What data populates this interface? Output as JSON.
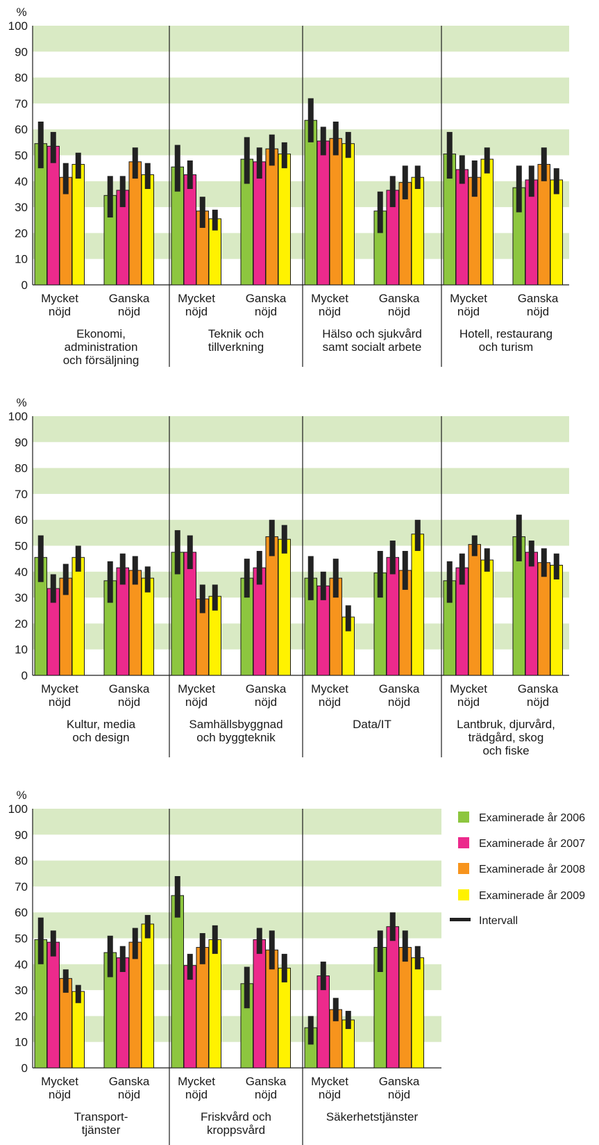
{
  "chart_data": {
    "type": "bar",
    "unit": "%",
    "ylim": [
      0,
      100
    ],
    "yticks": [
      0,
      10,
      20,
      30,
      40,
      50,
      60,
      70,
      80,
      90,
      100
    ],
    "grid": "alternating horizontal bands",
    "legend_placement": "right of bottom panel",
    "categories": [
      [
        "Mycket",
        "nöjd"
      ],
      [
        "Ganska",
        "nöjd"
      ]
    ],
    "series": [
      {
        "name": "Examinerade år 2006",
        "color": "#8dc63f"
      },
      {
        "name": "Examinerade år 2007",
        "color": "#ec2a8c"
      },
      {
        "name": "Examinerade år 2008",
        "color": "#f7941d"
      },
      {
        "name": "Examinerade år 2009",
        "color": "#fff200"
      }
    ],
    "interval_label": "Intervall",
    "band_color": "#d9eac4",
    "panels": [
      {
        "groups": [
          {
            "label": [
              "Ekonomi,",
              "administration",
              "och försäljning"
            ],
            "values": [
              [
                54.5,
                53.5,
                41.5,
                46.5
              ],
              [
                34.5,
                36.5,
                47.5,
                42.5
              ]
            ],
            "intervals": [
              [
                [
                  45,
                  63
                ],
                [
                  47,
                  59
                ],
                [
                  35,
                  47
                ],
                [
                  41,
                  51
                ]
              ],
              [
                [
                  26,
                  42
                ],
                [
                  30,
                  42
                ],
                [
                  41,
                  53
                ],
                [
                  37,
                  47
                ]
              ]
            ]
          },
          {
            "label": [
              "Teknik och",
              "tillverkning"
            ],
            "values": [
              [
                45.5,
                42.5,
                28.5,
                25.5
              ],
              [
                48.5,
                47.5,
                52.5,
                50.5
              ]
            ],
            "intervals": [
              [
                [
                  36,
                  54
                ],
                [
                  37,
                  48
                ],
                [
                  22,
                  34
                ],
                [
                  21,
                  29
                ]
              ],
              [
                [
                  39,
                  57
                ],
                [
                  41,
                  53
                ],
                [
                  46,
                  58
                ],
                [
                  45,
                  55
                ]
              ]
            ]
          },
          {
            "label": [
              "Hälso och sjukvård",
              "samt socialt arbete"
            ],
            "values": [
              [
                63.5,
                55.5,
                56.5,
                54.5
              ],
              [
                28.5,
                36.5,
                39.5,
                41.5
              ]
            ],
            "intervals": [
              [
                [
                  55,
                  72
                ],
                [
                  50,
                  61
                ],
                [
                  50,
                  63
                ],
                [
                  49,
                  59
                ]
              ],
              [
                [
                  20,
                  36
                ],
                [
                  30,
                  42
                ],
                [
                  33,
                  46
                ],
                [
                  37,
                  46
                ]
              ]
            ]
          },
          {
            "label": [
              "Hotell, restaurang",
              "och turism"
            ],
            "values": [
              [
                50.5,
                44.5,
                41.5,
                48.5
              ],
              [
                37.5,
                40.5,
                46.5,
                40.5
              ]
            ],
            "intervals": [
              [
                [
                  41,
                  59
                ],
                [
                  39,
                  50
                ],
                [
                  34,
                  48
                ],
                [
                  43,
                  53
                ]
              ],
              [
                [
                  28,
                  46
                ],
                [
                  34,
                  46
                ],
                [
                  40,
                  53
                ],
                [
                  35,
                  45
                ]
              ]
            ]
          }
        ]
      },
      {
        "groups": [
          {
            "label": [
              "Kultur, media",
              "och design"
            ],
            "values": [
              [
                45.5,
                33.5,
                37.5,
                45.5
              ],
              [
                36.5,
                41.5,
                40.5,
                37.5
              ]
            ],
            "intervals": [
              [
                [
                  36,
                  54
                ],
                [
                  28,
                  39
                ],
                [
                  31,
                  43
                ],
                [
                  40,
                  50
                ]
              ],
              [
                [
                  28,
                  44
                ],
                [
                  35,
                  47
                ],
                [
                  35,
                  46
                ],
                [
                  32,
                  42
                ]
              ]
            ]
          },
          {
            "label": [
              "Samhällsbyggnad",
              "och byggteknik"
            ],
            "values": [
              [
                47.5,
                47.5,
                29.5,
                30.5
              ],
              [
                37.5,
                41.5,
                53.5,
                52.5
              ]
            ],
            "intervals": [
              [
                [
                  39,
                  56
                ],
                [
                  41,
                  54
                ],
                [
                  24,
                  35
                ],
                [
                  25,
                  35
                ]
              ],
              [
                [
                  30,
                  45
                ],
                [
                  35,
                  48
                ],
                [
                  46,
                  60
                ],
                [
                  47,
                  58
                ]
              ]
            ]
          },
          {
            "label": [
              "Data/IT"
            ],
            "values": [
              [
                37.5,
                34.5,
                37.5,
                22.5
              ],
              [
                39.5,
                45.5,
                40.5,
                54.5
              ]
            ],
            "intervals": [
              [
                [
                  29,
                  46
                ],
                [
                  29,
                  40
                ],
                [
                  30,
                  45
                ],
                [
                  17,
                  27
                ]
              ],
              [
                [
                  30,
                  48
                ],
                [
                  39,
                  52
                ],
                [
                  33,
                  48
                ],
                [
                  48,
                  60
                ]
              ]
            ]
          },
          {
            "label": [
              "Lantbruk, djurvård,",
              "trädgård, skog",
              "och fiske"
            ],
            "values": [
              [
                36.5,
                41.5,
                50.5,
                44.5
              ],
              [
                53.5,
                47.5,
                43.5,
                42.5
              ]
            ],
            "intervals": [
              [
                [
                  28,
                  44
                ],
                [
                  35,
                  47
                ],
                [
                  46,
                  54
                ],
                [
                  40,
                  49
                ]
              ],
              [
                [
                  44,
                  62
                ],
                [
                  42,
                  52
                ],
                [
                  38,
                  49
                ],
                [
                  37,
                  47
                ]
              ]
            ]
          }
        ]
      },
      {
        "groups": [
          {
            "label": [
              "Transport-",
              "tjänster"
            ],
            "values": [
              [
                49.5,
                48.5,
                34.5,
                29.5
              ],
              [
                44.5,
                42.5,
                48.5,
                55.5
              ]
            ],
            "intervals": [
              [
                [
                  40,
                  58
                ],
                [
                  43,
                  53
                ],
                [
                  29,
                  38
                ],
                [
                  25,
                  32
                ]
              ],
              [
                [
                  35,
                  51
                ],
                [
                  37,
                  47
                ],
                [
                  42,
                  54
                ],
                [
                  50,
                  59
                ]
              ]
            ]
          },
          {
            "label": [
              "Friskvård och",
              "kroppsvård"
            ],
            "values": [
              [
                66.5,
                39.5,
                46.5,
                49.5
              ],
              [
                32.5,
                49.5,
                45.5,
                38.5
              ]
            ],
            "intervals": [
              [
                [
                  58,
                  74
                ],
                [
                  34,
                  44
                ],
                [
                  40,
                  52
                ],
                [
                  44,
                  55
                ]
              ],
              [
                [
                  23,
                  39
                ],
                [
                  44,
                  54
                ],
                [
                  38,
                  53
                ],
                [
                  33,
                  44
                ]
              ]
            ]
          },
          {
            "label": [
              "Säkerhetstjänster"
            ],
            "values": [
              [
                15.5,
                35.5,
                22.5,
                18.5
              ],
              [
                46.5,
                54.5,
                46.5,
                42.5
              ]
            ],
            "intervals": [
              [
                [
                  9,
                  20
                ],
                [
                  30,
                  41
                ],
                [
                  18,
                  27
                ],
                [
                  15,
                  22
                ]
              ],
              [
                [
                  37,
                  53
                ],
                [
                  49,
                  60
                ],
                [
                  41,
                  53
                ],
                [
                  38,
                  47
                ]
              ]
            ]
          }
        ]
      }
    ]
  }
}
